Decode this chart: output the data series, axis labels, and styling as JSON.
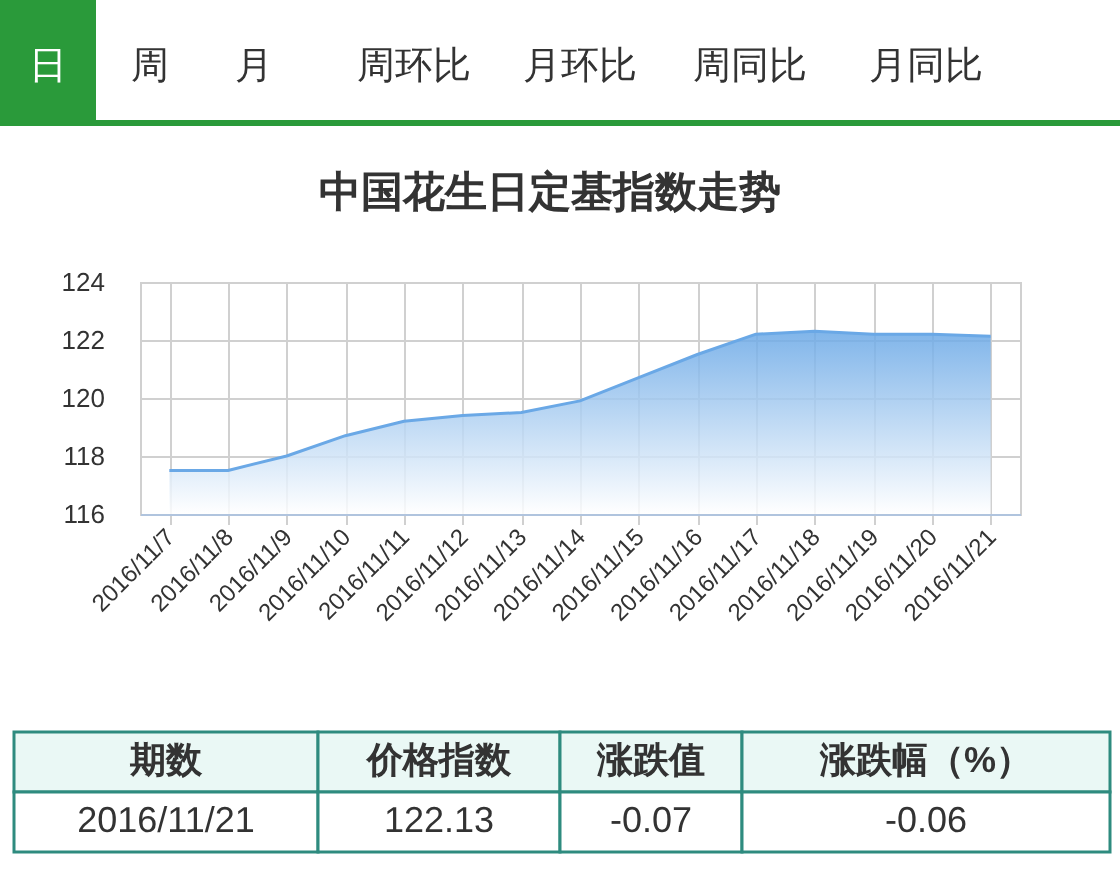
{
  "chart_data": {
    "type": "area",
    "title": "中国花生日定基指数走势",
    "categories": [
      "2016/11/7",
      "2016/11/8",
      "2016/11/9",
      "2016/11/10",
      "2016/11/11",
      "2016/11/12",
      "2016/11/13",
      "2016/11/14",
      "2016/11/15",
      "2016/11/16",
      "2016/11/17",
      "2016/11/18",
      "2016/11/19",
      "2016/11/20",
      "2016/11/21"
    ],
    "series": [
      {
        "color": "#6aa8e6",
        "values": [
          117.5,
          117.5,
          118.0,
          118.7,
          119.2,
          119.4,
          119.5,
          119.9,
          120.7,
          121.5,
          122.2,
          122.3,
          122.2,
          122.2,
          122.13
        ]
      }
    ],
    "ylim": [
      116,
      124
    ],
    "yticks": [
      116,
      118,
      120,
      122,
      124
    ],
    "grid": true,
    "annotations": [
      "日",
      "周",
      "月",
      "周环比",
      "月环比",
      "周同比",
      "月同比",
      "期数",
      "价格指数",
      "涨跌值",
      "涨跌幅（%）",
      "2016/11/21",
      "122.13",
      "-0.07",
      "-0.06"
    ]
  }
}
